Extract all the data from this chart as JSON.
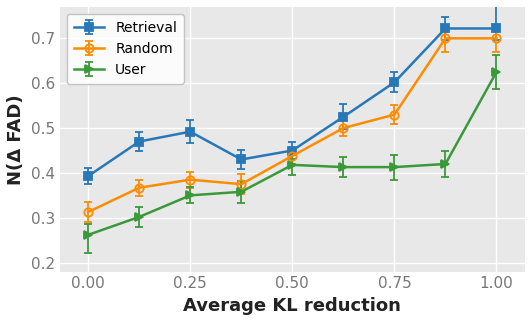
{
  "title": "",
  "xlabel": "Average KL reduction",
  "ylabel": "N(Δ FAD)",
  "xlim": [
    -0.07,
    1.07
  ],
  "ylim": [
    0.18,
    0.77
  ],
  "axes_facecolor": "#e8e8e8",
  "fig_facecolor": "#ffffff",
  "series": [
    {
      "label": "Retrieval",
      "color": "#2878b8",
      "marker": "s",
      "x": [
        0.0,
        0.125,
        0.25,
        0.375,
        0.5,
        0.625,
        0.75,
        0.875,
        1.0
      ],
      "y": [
        0.393,
        0.47,
        0.492,
        0.43,
        0.45,
        0.525,
        0.602,
        0.722,
        0.722
      ],
      "yerr_lo": [
        0.018,
        0.022,
        0.025,
        0.022,
        0.02,
        0.028,
        0.022,
        0.025,
        0.025
      ],
      "yerr_hi": [
        0.018,
        0.022,
        0.025,
        0.022,
        0.02,
        0.028,
        0.022,
        0.025,
        0.05
      ]
    },
    {
      "label": "Random",
      "color": "#ff8c00",
      "marker": "o",
      "x": [
        0.0,
        0.125,
        0.25,
        0.375,
        0.5,
        0.625,
        0.75,
        0.875,
        1.0
      ],
      "y": [
        0.313,
        0.367,
        0.385,
        0.375,
        0.438,
        0.5,
        0.53,
        0.7,
        0.7
      ],
      "yerr_lo": [
        0.022,
        0.018,
        0.018,
        0.022,
        0.018,
        0.018,
        0.022,
        0.03,
        0.03
      ],
      "yerr_hi": [
        0.022,
        0.018,
        0.018,
        0.022,
        0.018,
        0.018,
        0.022,
        0.03,
        0.03
      ]
    },
    {
      "label": "User",
      "color": "#3a9a3a",
      "marker": ">",
      "x": [
        0.0,
        0.125,
        0.25,
        0.375,
        0.5,
        0.625,
        0.75,
        0.875,
        1.0
      ],
      "y": [
        0.262,
        0.302,
        0.35,
        0.358,
        0.418,
        0.413,
        0.413,
        0.42,
        0.625
      ],
      "yerr_lo": [
        0.04,
        0.022,
        0.018,
        0.025,
        0.022,
        0.022,
        0.028,
        0.028,
        0.038
      ],
      "yerr_hi": [
        0.025,
        0.022,
        0.018,
        0.025,
        0.022,
        0.022,
        0.028,
        0.028,
        0.038
      ]
    }
  ],
  "xticks": [
    0,
    0.25,
    0.5,
    0.75,
    1.0
  ],
  "yticks": [
    0.2,
    0.3,
    0.4,
    0.5,
    0.6,
    0.7
  ],
  "grid": true,
  "legend_loc": "upper left",
  "markersize": 6,
  "linewidth": 1.8,
  "capsize": 3,
  "elinewidth": 1.3,
  "capthick": 1.3,
  "xlabel_fontsize": 13,
  "ylabel_fontsize": 13,
  "tick_fontsize": 11,
  "legend_fontsize": 10
}
